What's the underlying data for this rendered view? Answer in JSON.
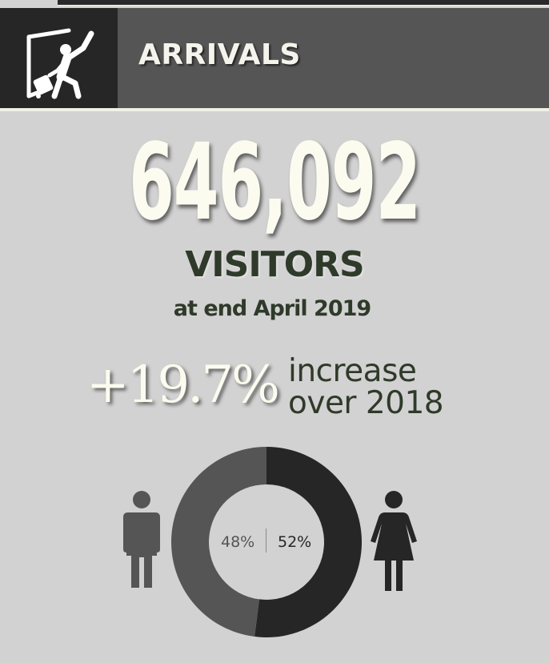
{
  "header": {
    "title": "ARRIVALS",
    "icon": "traveler-departing-door-icon"
  },
  "stats": {
    "visitors_total": "646,092",
    "visitors_label": "VISITORS",
    "period": "at end April 2019",
    "growth_pct": "+19.7%",
    "growth_line1": "increase",
    "growth_line2": "over 2018"
  },
  "gender_split": {
    "male_label": "48%",
    "female_label": "52%",
    "male_value": 48,
    "female_value": 52,
    "male_color": "#555555",
    "female_color": "#262626",
    "male_icon": "male-person-icon",
    "female_icon": "female-person-icon"
  },
  "colors": {
    "background": "#d2d2d2",
    "header_bg": "#555555",
    "icon_box_bg": "#262626",
    "number_color": "#fbfbef",
    "text_dark": "#2f3a2a"
  }
}
